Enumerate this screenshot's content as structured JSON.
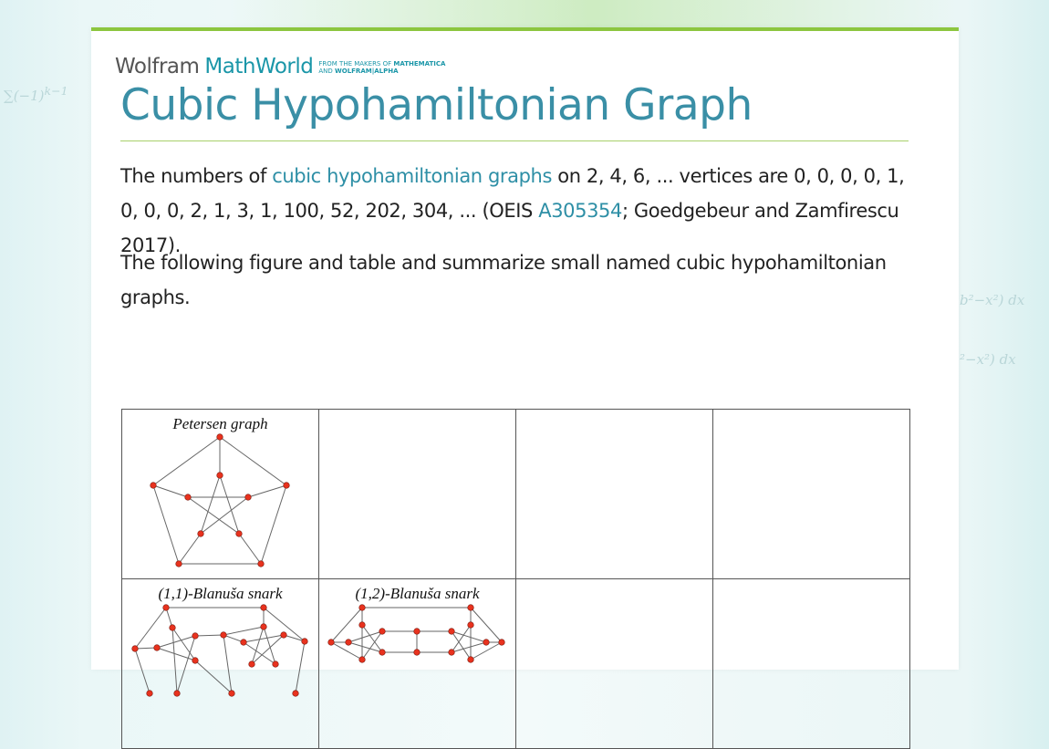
{
  "logo": {
    "wolfram": "Wolfram",
    "mathworld": "MathWorld",
    "tag_line1_plain": "FROM THE MAKERS OF ",
    "tag_line1_bold": "MATHEMATICA",
    "tag_line2_plain": "AND ",
    "tag_line2_bold": "WOLFRAM|ALPHA"
  },
  "page_title": "Cubic Hypohamiltonian Graph",
  "para1": {
    "t1": "The numbers of ",
    "link1": "cubic hypohamiltonian graphs",
    "t2": " on 2, 4, 6, ... vertices are 0, 0, 0, 0, 1, 0, 0, 0, 2, 1, 3, 1, 100, 52, 202, 304, ... (OEIS ",
    "link2": "A305354",
    "t3": "; Goedgebeur and Zamfirescu 2017)."
  },
  "para2": "The following figure and table and summarize small named cubic hypohamiltonian graphs.",
  "figure": {
    "cells": [
      [
        "Petersen graph",
        "",
        "",
        ""
      ],
      [
        "(1,1)-Blanuša snark",
        "(1,2)-Blanuša snark",
        "",
        ""
      ]
    ]
  },
  "colors": {
    "accent": "#3a8fa6",
    "rule": "#8cc63f",
    "node": "#e8321e"
  }
}
